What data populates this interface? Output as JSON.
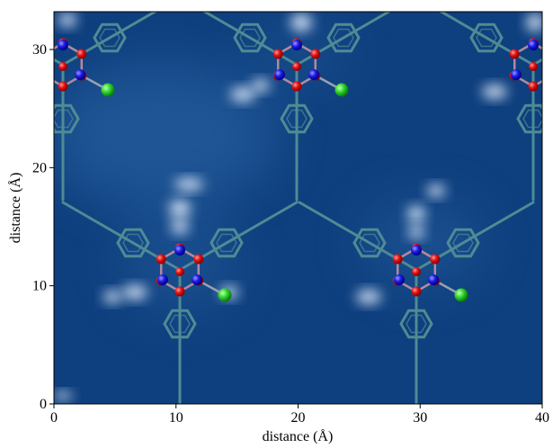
{
  "chart_data": {
    "type": "image",
    "xlabel": "distance (Å)",
    "ylabel": "distance (Å)",
    "xlim": [
      0,
      40
    ],
    "ylim": [
      0,
      33.2
    ],
    "xticks": [
      0,
      10,
      20,
      30,
      40
    ],
    "yticks": [
      0,
      10,
      20,
      30
    ]
  }
}
